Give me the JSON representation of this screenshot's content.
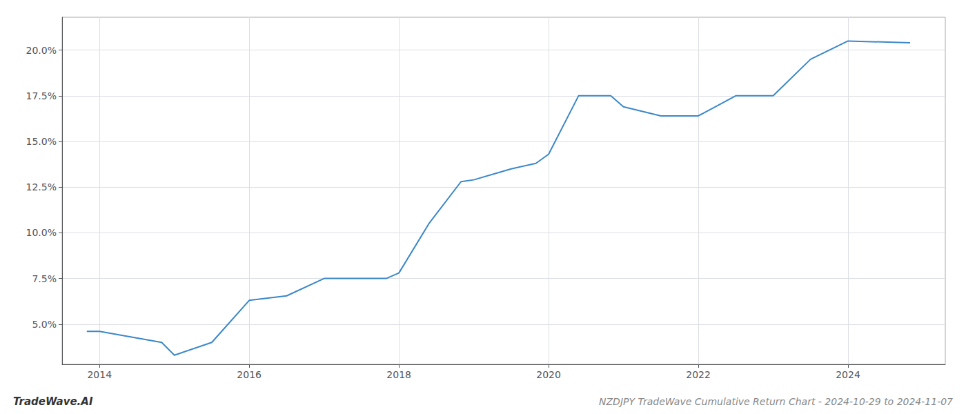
{
  "chart_data": {
    "type": "line",
    "title": "NZDJPY TradeWave Cumulative Return Chart - 2024-10-29 to 2024-11-07",
    "annotations": [
      "TradeWave.AI"
    ],
    "x": [
      2013.83,
      2014.0,
      2014.83,
      2015.0,
      2015.5,
      2016.0,
      2016.5,
      2017.0,
      2017.5,
      2017.83,
      2018.0,
      2018.4,
      2018.83,
      2019.0,
      2019.5,
      2019.83,
      2020.0,
      2020.4,
      2020.83,
      2021.0,
      2021.5,
      2022.0,
      2022.5,
      2022.83,
      2023.0,
      2023.5,
      2024.0,
      2024.83
    ],
    "values": [
      4.6,
      4.6,
      4.0,
      3.3,
      4.0,
      6.3,
      6.55,
      7.5,
      7.5,
      7.5,
      7.8,
      10.5,
      12.8,
      12.9,
      13.5,
      13.8,
      14.3,
      17.5,
      17.5,
      16.9,
      16.4,
      16.4,
      17.5,
      17.5,
      17.5,
      19.5,
      20.5,
      20.4
    ],
    "color": "#3a87c8",
    "xlim": [
      2013.5,
      2025.3
    ],
    "xticks": [
      2014,
      2016,
      2018,
      2020,
      2022,
      2024
    ],
    "ylim": [
      2.8,
      21.8
    ],
    "yticks": [
      {
        "value": 5.0,
        "label": "5.0%"
      },
      {
        "value": 7.5,
        "label": "7.5%"
      },
      {
        "value": 10.0,
        "label": "10.0%"
      },
      {
        "value": 12.5,
        "label": "12.5%"
      },
      {
        "value": 15.0,
        "label": "15.0%"
      },
      {
        "value": 17.5,
        "label": "17.5%"
      },
      {
        "value": 20.0,
        "label": "20.0%"
      }
    ],
    "grid": true
  }
}
